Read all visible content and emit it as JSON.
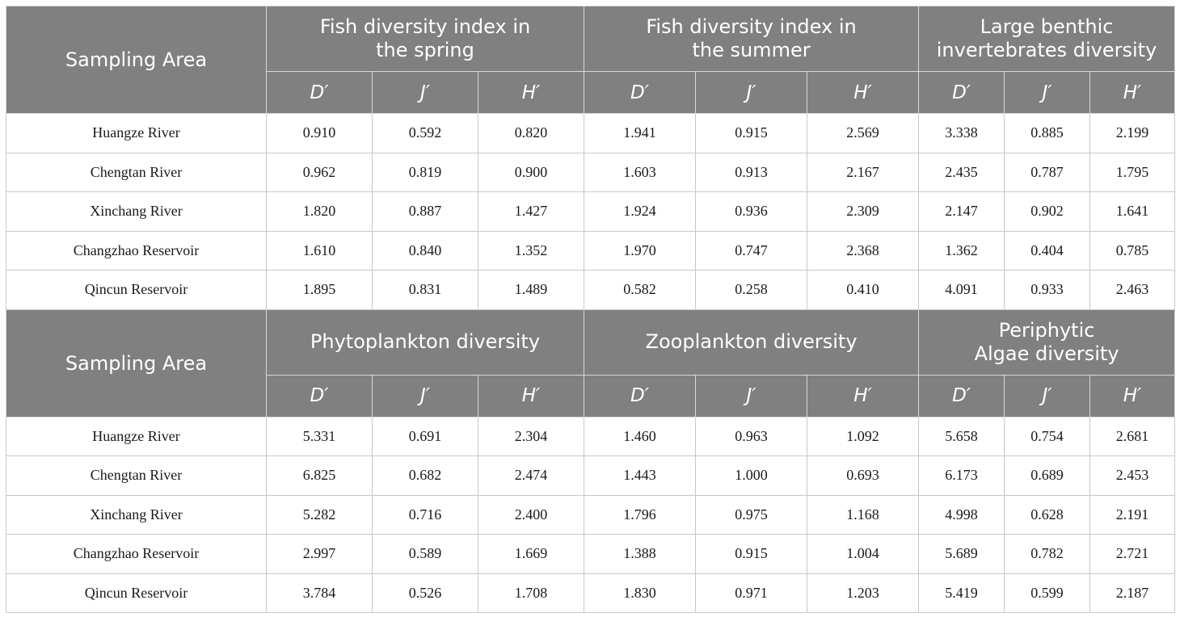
{
  "tables": [
    {
      "row_header": "Sampling Area",
      "groups": [
        {
          "title": "Fish diversity index in the spring",
          "line1": "Fish diversity index in",
          "line2": "the spring"
        },
        {
          "title": "Fish diversity index in the summer",
          "line1": "Fish diversity index in",
          "line2": "the summer"
        },
        {
          "title": "Large benthic invertebrates diversity",
          "line1": "Large benthic",
          "line2": "invertebrates diversity"
        }
      ],
      "sub_headers": [
        "D′",
        "J′",
        "H′",
        "D′",
        "J′",
        "H′",
        "D′",
        "J′",
        "H′"
      ],
      "rows": [
        {
          "area": "Huangze River",
          "values": [
            "0.910",
            "0.592",
            "0.820",
            "1.941",
            "0.915",
            "2.569",
            "3.338",
            "0.885",
            "2.199"
          ]
        },
        {
          "area": "Chengtan River",
          "values": [
            "0.962",
            "0.819",
            "0.900",
            "1.603",
            "0.913",
            "2.167",
            "2.435",
            "0.787",
            "1.795"
          ]
        },
        {
          "area": "Xinchang River",
          "values": [
            "1.820",
            "0.887",
            "1.427",
            "1.924",
            "0.936",
            "2.309",
            "2.147",
            "0.902",
            "1.641"
          ]
        },
        {
          "area": "Changzhao Reservoir",
          "values": [
            "1.610",
            "0.840",
            "1.352",
            "1.970",
            "0.747",
            "2.368",
            "1.362",
            "0.404",
            "0.785"
          ]
        },
        {
          "area": "Qincun Reservoir",
          "values": [
            "1.895",
            "0.831",
            "1.489",
            "0.582",
            "0.258",
            "0.410",
            "4.091",
            "0.933",
            "2.463"
          ]
        }
      ]
    },
    {
      "row_header": "Sampling Area",
      "groups": [
        {
          "title": "Phytoplankton diversity",
          "line1": "Phytoplankton diversity",
          "line2": ""
        },
        {
          "title": "Zooplankton diversity",
          "line1": "Zooplankton diversity",
          "line2": ""
        },
        {
          "title": "Periphytic Algae diversity",
          "line1": "Periphytic",
          "line2": "Algae diversity"
        }
      ],
      "sub_headers": [
        "D′",
        "J′",
        "H′",
        "D′",
        "J′",
        "H′",
        "D′",
        "J′",
        "H′"
      ],
      "rows": [
        {
          "area": "Huangze River",
          "values": [
            "5.331",
            "0.691",
            "2.304",
            "1.460",
            "0.963",
            "1.092",
            "5.658",
            "0.754",
            "2.681"
          ]
        },
        {
          "area": "Chengtan River",
          "values": [
            "6.825",
            "0.682",
            "2.474",
            "1.443",
            "1.000",
            "0.693",
            "6.173",
            "0.689",
            "2.453"
          ]
        },
        {
          "area": "Xinchang River",
          "values": [
            "5.282",
            "0.716",
            "2.400",
            "1.796",
            "0.975",
            "1.168",
            "4.998",
            "0.628",
            "2.191"
          ]
        },
        {
          "area": "Changzhao Reservoir",
          "values": [
            "2.997",
            "0.589",
            "1.669",
            "1.388",
            "0.915",
            "1.004",
            "5.689",
            "0.782",
            "2.721"
          ]
        },
        {
          "area": "Qincun Reservoir",
          "values": [
            "3.784",
            "0.526",
            "1.708",
            "1.830",
            "0.971",
            "1.203",
            "5.419",
            "0.599",
            "2.187"
          ]
        }
      ]
    }
  ],
  "colors": {
    "header_bg": "#808080",
    "header_text": "#ffffff",
    "grid": "#c8c8c8"
  }
}
